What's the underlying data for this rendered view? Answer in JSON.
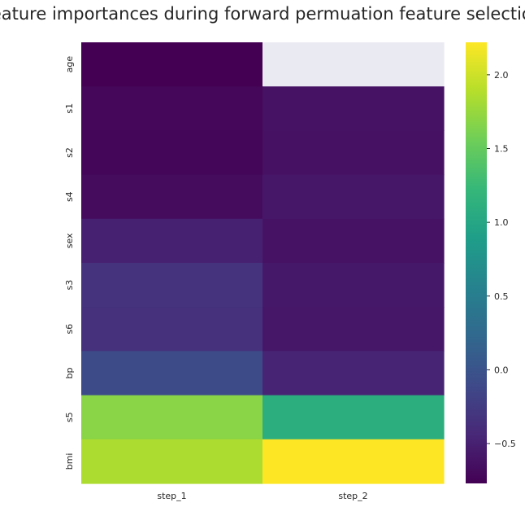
{
  "chart_data": {
    "type": "heatmap",
    "title": "Feature importances during forward permuation feature selection",
    "xlabel": "",
    "ylabel": "",
    "columns": [
      "step_1",
      "step_2"
    ],
    "rows": [
      "age",
      "s1",
      "s2",
      "s4",
      "sex",
      "s3",
      "s6",
      "bp",
      "s5",
      "bmi"
    ],
    "values": [
      [
        -0.77,
        null
      ],
      [
        -0.72,
        -0.62
      ],
      [
        -0.73,
        -0.63
      ],
      [
        -0.68,
        -0.58
      ],
      [
        -0.5,
        -0.62
      ],
      [
        -0.33,
        -0.57
      ],
      [
        -0.35,
        -0.58
      ],
      [
        -0.08,
        -0.47
      ],
      [
        1.68,
        1.1
      ],
      [
        1.85,
        2.22
      ]
    ],
    "missing_color": "#eaeaf2",
    "colormap": "viridis",
    "colorbar": {
      "min": -0.77,
      "max": 2.22,
      "ticks": [
        -0.5,
        0.0,
        0.5,
        1.0,
        1.5,
        2.0
      ],
      "tick_labels": [
        "−0.5",
        "0.0",
        "0.5",
        "1.0",
        "1.5",
        "2.0"
      ]
    },
    "grid": false,
    "legend": "colorbar-right"
  }
}
